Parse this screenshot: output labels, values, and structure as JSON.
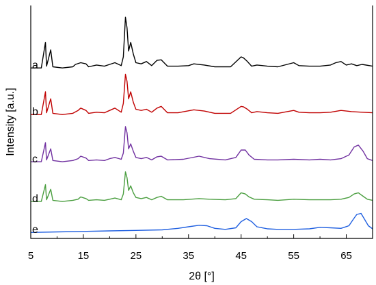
{
  "chart_data": {
    "type": "line",
    "xlabel": "2θ [°]",
    "ylabel": "Intensity [a.u.]",
    "xlim": [
      5,
      70
    ],
    "xticks": [
      5,
      15,
      25,
      35,
      45,
      55,
      65
    ],
    "yticks_shown": false,
    "grid": false,
    "series": [
      {
        "name": "a",
        "color": "#000000",
        "points": [
          [
            5,
            1
          ],
          [
            7,
            1
          ],
          [
            7.8,
            45
          ],
          [
            8,
            4
          ],
          [
            8.8,
            32
          ],
          [
            9.2,
            3
          ],
          [
            11,
            1
          ],
          [
            13,
            3
          ],
          [
            13.5,
            7
          ],
          [
            14.5,
            10
          ],
          [
            15.5,
            8
          ],
          [
            16,
            3
          ],
          [
            17.5,
            6
          ],
          [
            19,
            4
          ],
          [
            20,
            7
          ],
          [
            21,
            10
          ],
          [
            22.2,
            5
          ],
          [
            22.6,
            20
          ],
          [
            23,
            88
          ],
          [
            23.3,
            70
          ],
          [
            23.6,
            30
          ],
          [
            24,
            45
          ],
          [
            24.5,
            25
          ],
          [
            25,
            10
          ],
          [
            26,
            8
          ],
          [
            27,
            12
          ],
          [
            28,
            5
          ],
          [
            29,
            14
          ],
          [
            29.8,
            15
          ],
          [
            31,
            4
          ],
          [
            33,
            4
          ],
          [
            35,
            5
          ],
          [
            36,
            8
          ],
          [
            38,
            6
          ],
          [
            40,
            3
          ],
          [
            43,
            3
          ],
          [
            45,
            20
          ],
          [
            45.5,
            18
          ],
          [
            46.2,
            12
          ],
          [
            47,
            4
          ],
          [
            48,
            6
          ],
          [
            50,
            4
          ],
          [
            52,
            3
          ],
          [
            55,
            10
          ],
          [
            56,
            5
          ],
          [
            58,
            4
          ],
          [
            60,
            4
          ],
          [
            62,
            6
          ],
          [
            63,
            10
          ],
          [
            64,
            12
          ],
          [
            65,
            6
          ],
          [
            66,
            8
          ],
          [
            67,
            5
          ],
          [
            68,
            7
          ],
          [
            70,
            4
          ]
        ]
      },
      {
        "name": "b",
        "color": "#c00000",
        "points": [
          [
            5,
            1
          ],
          [
            7,
            1
          ],
          [
            7.8,
            40
          ],
          [
            8,
            4
          ],
          [
            8.8,
            28
          ],
          [
            9.2,
            3
          ],
          [
            11,
            1
          ],
          [
            13,
            3
          ],
          [
            14,
            8
          ],
          [
            14.5,
            12
          ],
          [
            15.5,
            8
          ],
          [
            16,
            3
          ],
          [
            17.5,
            5
          ],
          [
            19,
            4
          ],
          [
            20,
            8
          ],
          [
            21,
            12
          ],
          [
            22.2,
            5
          ],
          [
            22.6,
            20
          ],
          [
            23,
            70
          ],
          [
            23.3,
            58
          ],
          [
            23.6,
            28
          ],
          [
            24,
            40
          ],
          [
            24.5,
            22
          ],
          [
            25,
            10
          ],
          [
            26,
            8
          ],
          [
            27,
            10
          ],
          [
            28,
            5
          ],
          [
            29,
            12
          ],
          [
            29.8,
            15
          ],
          [
            31,
            4
          ],
          [
            33,
            4
          ],
          [
            36,
            9
          ],
          [
            38,
            7
          ],
          [
            40,
            3
          ],
          [
            43,
            3
          ],
          [
            45,
            15
          ],
          [
            45.5,
            14
          ],
          [
            46.2,
            10
          ],
          [
            47,
            4
          ],
          [
            48,
            6
          ],
          [
            50,
            4
          ],
          [
            52,
            3
          ],
          [
            55,
            8
          ],
          [
            56,
            5
          ],
          [
            58,
            4
          ],
          [
            60,
            4
          ],
          [
            62,
            5
          ],
          [
            64,
            8
          ],
          [
            66,
            6
          ],
          [
            68,
            5
          ],
          [
            70,
            4
          ]
        ]
      },
      {
        "name": "c",
        "color": "#7030a0",
        "points": [
          [
            5,
            1
          ],
          [
            7,
            1
          ],
          [
            7.8,
            32
          ],
          [
            8,
            4
          ],
          [
            8.8,
            22
          ],
          [
            9.2,
            3
          ],
          [
            11,
            1
          ],
          [
            13,
            3
          ],
          [
            14,
            6
          ],
          [
            14.5,
            10
          ],
          [
            15.5,
            7
          ],
          [
            16,
            3
          ],
          [
            17.5,
            4
          ],
          [
            19,
            3
          ],
          [
            20,
            6
          ],
          [
            21,
            8
          ],
          [
            22.2,
            5
          ],
          [
            22.6,
            15
          ],
          [
            23,
            58
          ],
          [
            23.3,
            48
          ],
          [
            23.6,
            22
          ],
          [
            24,
            30
          ],
          [
            24.5,
            18
          ],
          [
            25,
            8
          ],
          [
            26,
            6
          ],
          [
            27,
            8
          ],
          [
            28,
            4
          ],
          [
            29,
            9
          ],
          [
            29.8,
            10
          ],
          [
            31,
            4
          ],
          [
            34,
            5
          ],
          [
            37,
            10
          ],
          [
            39,
            6
          ],
          [
            42,
            4
          ],
          [
            44,
            8
          ],
          [
            45,
            20
          ],
          [
            45.8,
            20
          ],
          [
            46.5,
            12
          ],
          [
            47.5,
            5
          ],
          [
            50,
            4
          ],
          [
            52,
            4
          ],
          [
            55,
            5
          ],
          [
            58,
            4
          ],
          [
            60,
            5
          ],
          [
            62,
            4
          ],
          [
            64,
            6
          ],
          [
            65.5,
            12
          ],
          [
            66.5,
            25
          ],
          [
            67.3,
            28
          ],
          [
            68.2,
            18
          ],
          [
            69,
            6
          ],
          [
            70,
            3
          ]
        ]
      },
      {
        "name": "d",
        "color": "#4a9e3f",
        "points": [
          [
            5,
            1
          ],
          [
            7,
            1
          ],
          [
            7.8,
            30
          ],
          [
            8,
            4
          ],
          [
            8.8,
            22
          ],
          [
            9.2,
            3
          ],
          [
            11,
            1
          ],
          [
            13,
            3
          ],
          [
            14,
            5
          ],
          [
            14.5,
            9
          ],
          [
            15.5,
            6
          ],
          [
            16,
            3
          ],
          [
            17.5,
            4
          ],
          [
            19,
            3
          ],
          [
            20,
            5
          ],
          [
            21,
            7
          ],
          [
            22.2,
            4
          ],
          [
            22.6,
            14
          ],
          [
            23,
            52
          ],
          [
            23.3,
            42
          ],
          [
            23.6,
            20
          ],
          [
            24,
            28
          ],
          [
            24.5,
            16
          ],
          [
            25,
            8
          ],
          [
            26,
            6
          ],
          [
            27,
            8
          ],
          [
            28,
            4
          ],
          [
            29,
            8
          ],
          [
            29.8,
            10
          ],
          [
            31,
            4
          ],
          [
            34,
            4
          ],
          [
            37,
            6
          ],
          [
            39,
            5
          ],
          [
            42,
            4
          ],
          [
            44,
            6
          ],
          [
            45,
            16
          ],
          [
            45.8,
            14
          ],
          [
            46.5,
            9
          ],
          [
            47.5,
            5
          ],
          [
            50,
            4
          ],
          [
            52,
            3
          ],
          [
            55,
            5
          ],
          [
            58,
            4
          ],
          [
            60,
            4
          ],
          [
            62,
            4
          ],
          [
            64,
            5
          ],
          [
            65.5,
            8
          ],
          [
            66.5,
            14
          ],
          [
            67.3,
            16
          ],
          [
            68.2,
            10
          ],
          [
            69,
            5
          ],
          [
            70,
            3
          ]
        ]
      },
      {
        "name": "e",
        "color": "#1f5fe0",
        "points": [
          [
            5,
            1
          ],
          [
            10,
            2
          ],
          [
            15,
            3
          ],
          [
            20,
            4
          ],
          [
            25,
            5
          ],
          [
            30,
            6
          ],
          [
            33,
            9
          ],
          [
            35,
            12
          ],
          [
            37,
            15
          ],
          [
            38.5,
            14
          ],
          [
            40,
            9
          ],
          [
            42,
            7
          ],
          [
            44,
            10
          ],
          [
            45,
            22
          ],
          [
            46,
            28
          ],
          [
            47,
            22
          ],
          [
            48,
            12
          ],
          [
            50,
            8
          ],
          [
            52,
            7
          ],
          [
            55,
            7
          ],
          [
            58,
            8
          ],
          [
            60,
            11
          ],
          [
            62,
            10
          ],
          [
            64,
            9
          ],
          [
            65.5,
            14
          ],
          [
            66.3,
            26
          ],
          [
            67,
            36
          ],
          [
            67.8,
            38
          ],
          [
            68.5,
            26
          ],
          [
            69.2,
            14
          ],
          [
            70,
            8
          ]
        ]
      }
    ]
  }
}
